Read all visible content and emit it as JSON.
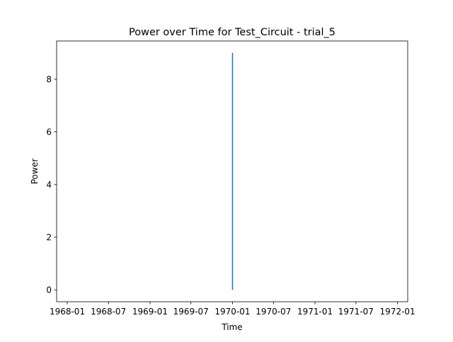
{
  "chart_data": {
    "type": "line",
    "title": "Power over Time for Test_Circuit - trial_5",
    "xlabel": "Time",
    "ylabel": "Power",
    "x_axis_type": "date",
    "xlim": [
      "1967-11-15",
      "1972-02-15"
    ],
    "ylim": [
      -0.45,
      9.45
    ],
    "grid": false,
    "legend": "none",
    "x_ticks": [
      {
        "value": "1968-01-01",
        "label": "1968-01"
      },
      {
        "value": "1968-07-01",
        "label": "1968-07"
      },
      {
        "value": "1969-01-01",
        "label": "1969-01"
      },
      {
        "value": "1969-07-01",
        "label": "1969-07"
      },
      {
        "value": "1970-01-01",
        "label": "1970-01"
      },
      {
        "value": "1970-07-01",
        "label": "1970-07"
      },
      {
        "value": "1971-01-01",
        "label": "1971-01"
      },
      {
        "value": "1971-07-01",
        "label": "1971-07"
      },
      {
        "value": "1972-01-01",
        "label": "1972-01"
      }
    ],
    "y_ticks": [
      {
        "value": 0,
        "label": "0"
      },
      {
        "value": 2,
        "label": "2"
      },
      {
        "value": 4,
        "label": "4"
      },
      {
        "value": 6,
        "label": "6"
      },
      {
        "value": 8,
        "label": "8"
      }
    ],
    "series": [
      {
        "color": "#1f77b4",
        "points": [
          {
            "x": "1970-01-01",
            "y": 0
          },
          {
            "x": "1970-01-01",
            "y": 9
          }
        ]
      }
    ]
  }
}
